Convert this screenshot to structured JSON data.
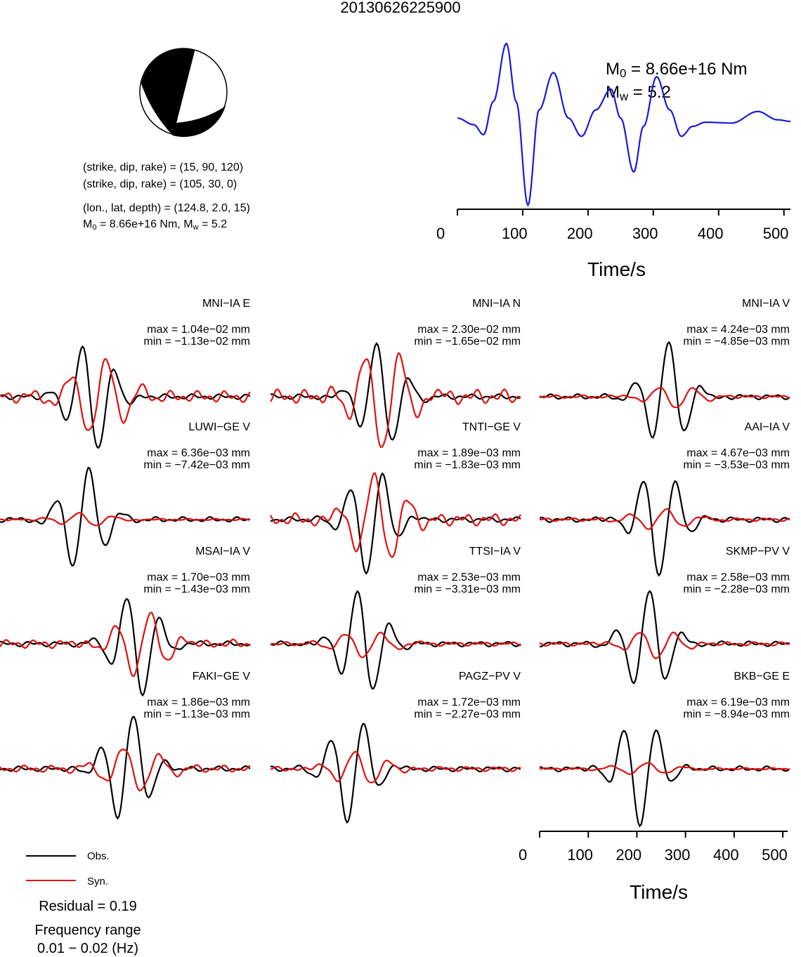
{
  "title": "20130626225900",
  "mechanism": {
    "plane1": "(strike, dip, rake) = (15, 90, 120)",
    "plane2": "(strike, dip, rake) = (105, 30, 0)",
    "location": "(lon., lat, depth) = (124.8, 2.0, 15)",
    "m0_prefix": "M",
    "m0_sub": "0",
    "m0_value": " = 8.66e+16 Nm, M",
    "mw_sub": "w",
    "mw_value": " = 5.2"
  },
  "stf": {
    "m0_label": "M",
    "m0_sub": "0",
    "m0_text": " = 8.66e+16 Nm",
    "mw_label": "M",
    "mw_sub": "w",
    "mw_text": " = 5.2",
    "color": "#1a1ad6",
    "xlabel": "Time/s",
    "ticks": [
      "0",
      "100",
      "200",
      "300",
      "400",
      "500"
    ]
  },
  "waveform_axis": {
    "xlabel": "Time/s",
    "ticks": [
      "0",
      "100",
      "200",
      "300",
      "400",
      "500"
    ]
  },
  "legend": {
    "obs": "Obs.",
    "syn": "Syn.",
    "obs_color": "#000000",
    "syn_color": "#e01010"
  },
  "residual": "Residual = 0.19",
  "freq_label": "Frequency range",
  "freq_value": "0.01 − 0.02 (Hz)",
  "chart_data": {
    "type": "line",
    "title": "20130626225900",
    "xlabel": "Time/s",
    "xlim": [
      0,
      510
    ],
    "series": [
      {
        "name": "Obs."
      },
      {
        "name": "Syn."
      }
    ],
    "stations": [
      {
        "name": "MNI−IA E",
        "max": "max = 1.04e−02 mm",
        "min": "min = −1.13e−02 mm",
        "obs_amp": 1.0,
        "syn_amp": 0.75,
        "seed": 1
      },
      {
        "name": "MNI−IA N",
        "max": "max = 2.30e−02 mm",
        "min": "min = −1.65e−02 mm",
        "obs_amp": 1.0,
        "syn_amp": 0.95,
        "seed": 2
      },
      {
        "name": "MNI−IA V",
        "max": "max = 4.24e−03 mm",
        "min": "min = −4.85e−03 mm",
        "obs_amp": 1.0,
        "syn_amp": 0.2,
        "seed": 3
      },
      {
        "name": "LUWI−GE V",
        "max": "max = 6.36e−03 mm",
        "min": "min = −7.42e−03 mm",
        "obs_amp": 1.0,
        "syn_amp": 0.12,
        "seed": 4
      },
      {
        "name": "TNTI−GE V",
        "max": "max = 1.89e−03 mm",
        "min": "min = −1.83e−03 mm",
        "obs_amp": 1.0,
        "syn_amp": 0.8,
        "seed": 5
      },
      {
        "name": "AAI−IA V",
        "max": "max = 4.67e−03 mm",
        "min": "min = −3.53e−03 mm",
        "obs_amp": 1.0,
        "syn_amp": 0.2,
        "seed": 6
      },
      {
        "name": "MSAI−IA V",
        "max": "max = 1.70e−03 mm",
        "min": "min = −1.43e−03 mm",
        "obs_amp": 1.0,
        "syn_amp": 0.55,
        "seed": 7
      },
      {
        "name": "TTSI−IA V",
        "max": "max = 2.53e−03 mm",
        "min": "min = −3.31e−03 mm",
        "obs_amp": 1.0,
        "syn_amp": 0.25,
        "seed": 8
      },
      {
        "name": "SKMP−PV V",
        "max": "max = 2.58e−03 mm",
        "min": "min = −2.28e−03 mm",
        "obs_amp": 1.0,
        "syn_amp": 0.25,
        "seed": 9
      },
      {
        "name": "FAKI−GE V",
        "max": "max = 1.86e−03 mm",
        "min": "min = −1.13e−03 mm",
        "obs_amp": 1.0,
        "syn_amp": 0.45,
        "seed": 10
      },
      {
        "name": "PAGZ−PV V",
        "max": "max = 1.72e−03 mm",
        "min": "min = −2.27e−03 mm",
        "obs_amp": 1.0,
        "syn_amp": 0.3,
        "seed": 11
      },
      {
        "name": "BKB−GE E",
        "max": "max = 6.19e−03 mm",
        "min": "min = −8.94e−03 mm",
        "obs_amp": 1.0,
        "syn_amp": 0.12,
        "seed": 12
      }
    ],
    "stf_x": [
      0,
      25,
      40,
      55,
      75,
      90,
      108,
      125,
      147,
      170,
      190,
      212,
      235,
      250,
      270,
      285,
      305,
      325,
      343,
      360,
      380,
      420,
      460,
      490,
      510
    ],
    "stf_y": [
      0.1,
      0.02,
      -0.1,
      0.3,
      1.0,
      0.3,
      -0.95,
      0.2,
      0.65,
      0.1,
      -0.12,
      0.2,
      0.45,
      0.1,
      -0.55,
      0.0,
      0.6,
      0.2,
      -0.12,
      0.0,
      0.05,
      0.04,
      0.18,
      0.08,
      0.06
    ]
  }
}
